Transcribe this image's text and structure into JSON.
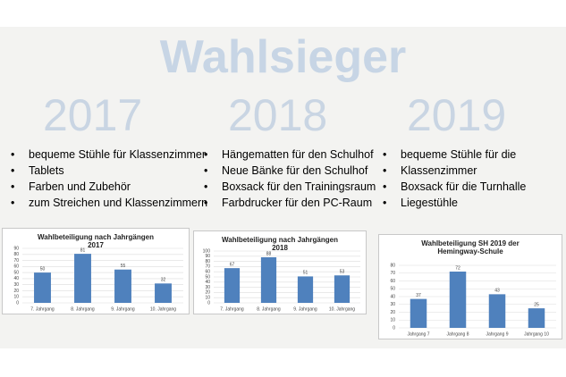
{
  "title": "Wahlsieger",
  "columns": [
    {
      "year": "2017",
      "items": [
        "bequeme Stühle für Klassenzimmer",
        "Tablets",
        "Farben und Zubehör",
        "zum Streichen und Klassenzimmern"
      ]
    },
    {
      "year": "2018",
      "items": [
        "Hängematten für den Schulhof",
        "Neue Bänke für den Schulhof",
        "Boxsack für den Trainingsraum",
        "Farbdrucker für den PC-Raum"
      ]
    },
    {
      "year": "2019",
      "items": [
        "bequeme Stühle für die",
        "Klassenzimmer",
        "Boxsack für die Turnhalle",
        "Liegestühle"
      ]
    }
  ],
  "chart_data": [
    {
      "type": "bar",
      "title": "Wahlbeteiligung nach Jahrgängen 2017",
      "categories": [
        "7. Jahrgang",
        "8. Jahrgang",
        "9. Jahrgang",
        "10. Jahrgang"
      ],
      "values": [
        50,
        81,
        55,
        32
      ],
      "color": "#4f81bd",
      "ylim": [
        0,
        90
      ],
      "yticks": [
        0,
        10,
        20,
        30,
        40,
        50,
        60,
        70,
        80,
        90
      ],
      "grid": true
    },
    {
      "type": "bar",
      "title": "Wahlbeteiligung nach Jahrgängen 2018",
      "categories": [
        "7. Jahrgang",
        "8. Jahrgang",
        "9. Jahrgang",
        "10. Jahrgang"
      ],
      "values": [
        67,
        88,
        51,
        53
      ],
      "color": "#4f81bd",
      "ylim": [
        0,
        100
      ],
      "yticks": [
        0,
        10,
        20,
        30,
        40,
        50,
        60,
        70,
        80,
        90,
        100
      ],
      "grid": true
    },
    {
      "type": "bar",
      "title": "Wahlbeteiligung SH 2019 der Hemingway-Schule",
      "categories": [
        "Jahrgang 7",
        "Jahrgang 8",
        "Jahrgang 9",
        "Jahrgang 10"
      ],
      "values": [
        37,
        72,
        43,
        25
      ],
      "color": "#4f81bd",
      "ylim": [
        0,
        80
      ],
      "yticks": [
        0,
        10,
        20,
        30,
        40,
        50,
        60,
        70,
        80
      ],
      "grid": true
    }
  ]
}
